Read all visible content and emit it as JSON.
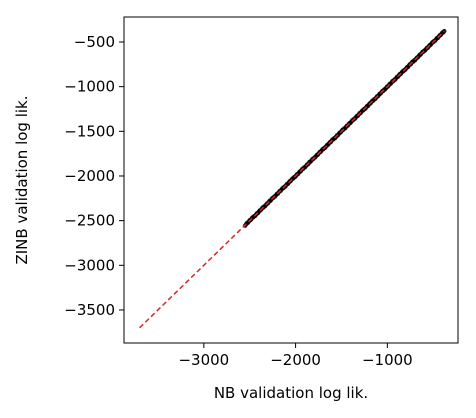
{
  "chart_data": {
    "type": "scatter",
    "title": "",
    "xlabel": "NB validation log lik.",
    "ylabel": "ZINB validation log lik.",
    "xlim": [
      -3870,
      -230
    ],
    "ylim": [
      -3870,
      -220
    ],
    "xticks": [
      -3000,
      -2000,
      -1000
    ],
    "xtick_labels": [
      "−3000",
      "−2000",
      "−1000"
    ],
    "yticks": [
      -3500,
      -3000,
      -2500,
      -2000,
      -1500,
      -1000,
      -500
    ],
    "ytick_labels": [
      "−3500",
      "−3000",
      "−2500",
      "−2000",
      "−1500",
      "−1000",
      "−500"
    ],
    "grid": false,
    "series": [
      {
        "color": "#000000",
        "points": {
          "x_range": [
            -2550,
            -380
          ],
          "y_range": [
            -2550,
            -380
          ],
          "relation": "y = x",
          "count": 220
        }
      }
    ],
    "reference_line": {
      "style": "dashed",
      "color": "#d62728",
      "from": [
        -3700,
        -3700
      ],
      "to": [
        -380,
        -380
      ]
    }
  }
}
